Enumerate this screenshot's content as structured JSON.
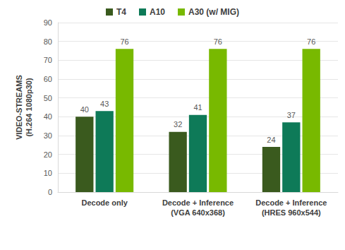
{
  "chart_data": {
    "type": "bar",
    "y_label": "VIDEO-STREAMS\n(H.264 1080p30)",
    "categories": [
      "Decode only",
      "Decode + Inference\n(VGA 640x368)",
      "Decode + Inference\n(HRES 960x544)"
    ],
    "series": [
      {
        "name": "T4",
        "color": "#3a5a1e",
        "values": [
          40,
          32,
          24
        ]
      },
      {
        "name": "A10",
        "color": "#0e7a58",
        "values": [
          43,
          41,
          37
        ]
      },
      {
        "name": "A30 (w/ MIG)",
        "color": "#78b900",
        "values": [
          76,
          76,
          76
        ]
      }
    ],
    "ylim": [
      0,
      90
    ],
    "yticks": [
      0,
      10,
      20,
      30,
      40,
      50,
      60,
      70,
      80,
      90
    ],
    "grid": true,
    "legend": "top",
    "data_labels": true
  }
}
